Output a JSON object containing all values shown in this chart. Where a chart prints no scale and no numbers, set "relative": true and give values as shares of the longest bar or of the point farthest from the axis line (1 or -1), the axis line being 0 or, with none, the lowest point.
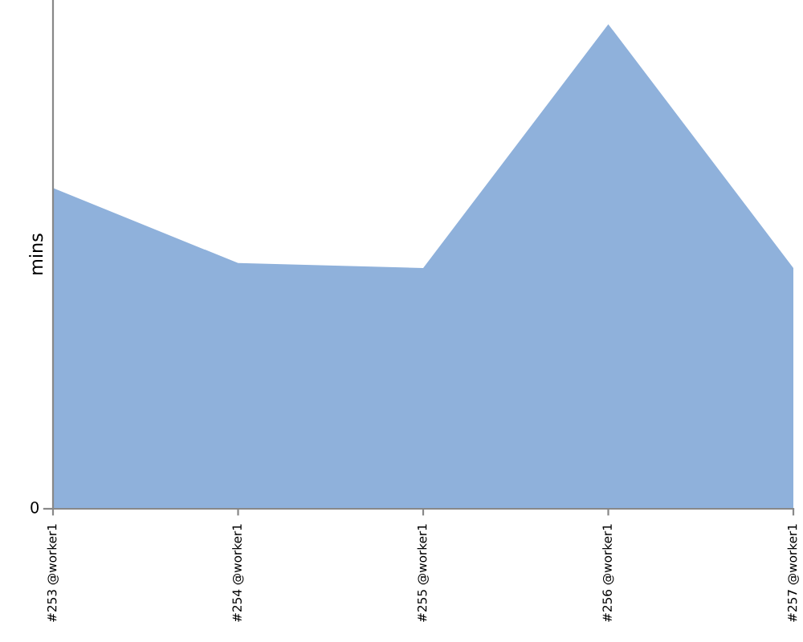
{
  "chart_data": {
    "type": "area",
    "ylabel": "mins",
    "relative": true,
    "annotations": [
      "0"
    ],
    "categories": [
      "#253 @worker1",
      "#254 @worker1",
      "#255 @worker1",
      "#256 @worker1",
      "#257 @worker1"
    ],
    "series": [
      {
        "color": "#8fb1db",
        "values": [
          0.662,
          0.507,
          0.497,
          1,
          0.497
        ]
      }
    ],
    "grid": false
  }
}
